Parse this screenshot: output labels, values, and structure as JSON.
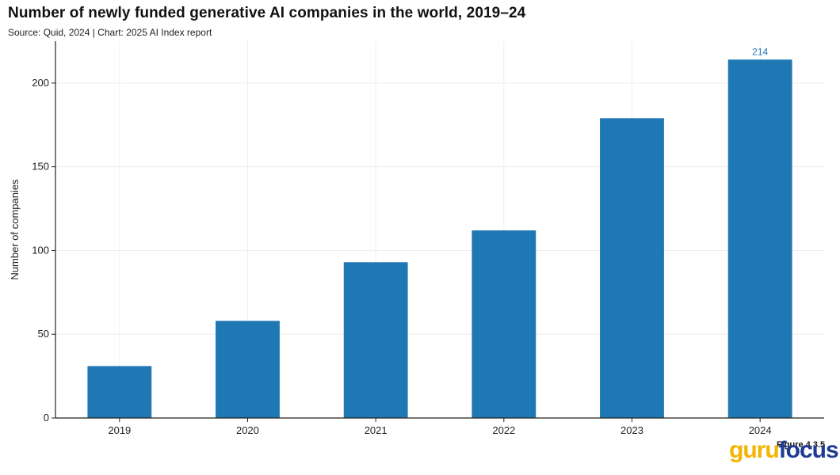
{
  "chart_data": {
    "type": "bar",
    "title": "Number of newly funded generative AI companies in the world, 2019–24",
    "subtitle": "Source: Quid, 2024 | Chart: 2025 AI Index report",
    "categories": [
      "2019",
      "2020",
      "2021",
      "2022",
      "2023",
      "2024"
    ],
    "values": [
      31,
      58,
      93,
      112,
      179,
      214
    ],
    "data_labels": [
      null,
      null,
      null,
      null,
      null,
      "214"
    ],
    "xlabel": "",
    "ylabel": "Number of companies",
    "ylim": [
      0,
      225
    ],
    "yticks": [
      0,
      50,
      100,
      150,
      200
    ],
    "grid": true,
    "bar_color": "#1f77b4",
    "label_color": "#1f77b4"
  },
  "figure_label": "Figure 4.3.5",
  "watermark": {
    "part1": "guru",
    "part2": "focus",
    "color1": "#f4b400",
    "color2": "#1f3a93"
  }
}
